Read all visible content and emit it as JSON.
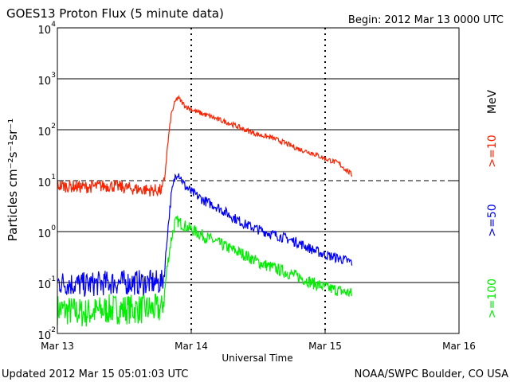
{
  "chart_data": {
    "type": "line",
    "title": "GOES13 Proton Flux (5 minute data)",
    "begin_label": "Begin: 2012 Mar 13 0000 UTC",
    "xlabel": "Universal Time",
    "ylabel": "Particles cm⁻²s⁻¹sr⁻¹",
    "units_label": "MeV",
    "footer_left": "Updated 2012 Mar 15 05:01:03 UTC",
    "footer_right": "NOAA/SWPC Boulder, CO USA",
    "x_unit": "days since 2012 Mar 13 0000 UTC",
    "xlim": [
      0,
      3
    ],
    "x_ticks": [
      {
        "x": 0,
        "label": "Mar 13"
      },
      {
        "x": 1,
        "label": "Mar 14"
      },
      {
        "x": 2,
        "label": "Mar 15"
      },
      {
        "x": 3,
        "label": "Mar 16"
      }
    ],
    "y_scale": "log",
    "ylim": [
      0.01,
      10000
    ],
    "y_ticks": [
      {
        "exp": -2,
        "label": "10",
        "sup": "-2"
      },
      {
        "exp": -1,
        "label": "10",
        "sup": "-1"
      },
      {
        "exp": 0,
        "label": "10",
        "sup": "0"
      },
      {
        "exp": 1,
        "label": "10",
        "sup": "1"
      },
      {
        "exp": 2,
        "label": "10",
        "sup": "2"
      },
      {
        "exp": 3,
        "label": "10",
        "sup": "3"
      },
      {
        "exp": 4,
        "label": "10",
        "sup": "4"
      }
    ],
    "threshold": {
      "y": 10,
      "style": "dashed"
    },
    "gridlines": [
      1000,
      100,
      1,
      0.1
    ],
    "series": [
      {
        "name": ">=10",
        "color": "#ff2200",
        "noise": 0.05,
        "x": [
          0,
          0.2,
          0.4,
          0.55,
          0.7,
          0.78,
          0.8,
          0.82,
          0.85,
          0.88,
          0.9,
          0.95,
          1.0,
          1.05,
          1.1,
          1.2,
          1.3,
          1.4,
          1.5,
          1.6,
          1.7,
          1.8,
          1.9,
          2.0,
          2.1,
          2.2
        ],
        "y": [
          8,
          7.5,
          8,
          7,
          6.5,
          6.5,
          10,
          40,
          200,
          350,
          430,
          300,
          250,
          220,
          200,
          160,
          130,
          100,
          80,
          70,
          55,
          42,
          35,
          27,
          22,
          13
        ]
      },
      {
        "name": ">=50",
        "color": "#0000ff",
        "noise": 0.1,
        "x": [
          0,
          0.2,
          0.4,
          0.55,
          0.7,
          0.78,
          0.8,
          0.82,
          0.85,
          0.88,
          0.9,
          0.95,
          1.0,
          1.1,
          1.2,
          1.3,
          1.4,
          1.5,
          1.6,
          1.7,
          1.8,
          1.9,
          2.0,
          2.1,
          2.2
        ],
        "y": [
          0.1,
          0.09,
          0.1,
          0.1,
          0.1,
          0.1,
          0.15,
          0.8,
          5,
          12,
          15,
          8,
          6,
          4,
          3,
          2,
          1.4,
          1.1,
          0.9,
          0.75,
          0.6,
          0.45,
          0.35,
          0.3,
          0.25
        ]
      },
      {
        "name": ">=100",
        "color": "#00ee00",
        "noise": 0.12,
        "x": [
          0,
          0.2,
          0.4,
          0.55,
          0.7,
          0.78,
          0.8,
          0.82,
          0.85,
          0.88,
          0.9,
          0.95,
          1.0,
          1.1,
          1.2,
          1.3,
          1.4,
          1.5,
          1.6,
          1.7,
          1.8,
          1.9,
          2.0,
          2.1,
          2.2
        ],
        "y": [
          0.03,
          0.025,
          0.03,
          0.03,
          0.03,
          0.03,
          0.06,
          0.2,
          0.7,
          1.5,
          1.6,
          1.3,
          1.1,
          0.8,
          0.6,
          0.45,
          0.35,
          0.25,
          0.2,
          0.16,
          0.13,
          0.1,
          0.08,
          0.07,
          0.06
        ]
      }
    ]
  }
}
